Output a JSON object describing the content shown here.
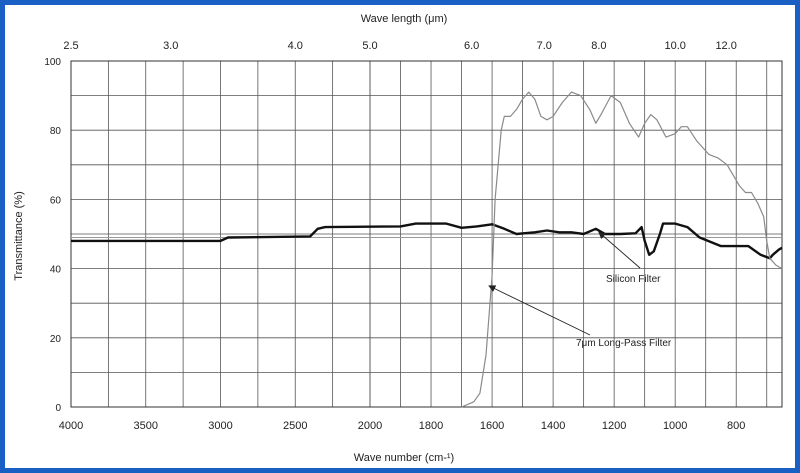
{
  "chart_data": {
    "type": "line",
    "title": "",
    "top_axis": {
      "label": "Wave length (μm)",
      "ticks": [
        {
          "label": "2.5",
          "wavenumber": 4000
        },
        {
          "label": "3.0",
          "wavenumber": 3333
        },
        {
          "label": "4.0",
          "wavenumber": 2500
        },
        {
          "label": "5.0",
          "wavenumber": 2000
        },
        {
          "label": "6.0",
          "wavenumber": 1667
        },
        {
          "label": "7.0",
          "wavenumber": 1429
        },
        {
          "label": "8.0",
          "wavenumber": 1250
        },
        {
          "label": "10.0",
          "wavenumber": 1000
        },
        {
          "label": "12.0",
          "wavenumber": 833
        }
      ]
    },
    "xlabel": "Wave number (cm-¹)",
    "ylabel": "Transmittance (%)",
    "x_break_at": 2000,
    "x_segments": [
      {
        "from": 4000,
        "to": 2000,
        "step": 500
      },
      {
        "from": 2000,
        "to": 650,
        "step": 200
      }
    ],
    "x_ticks": [
      4000,
      3500,
      3000,
      2500,
      2000,
      1800,
      1600,
      1400,
      1200,
      1000,
      800
    ],
    "xlim": [
      4000,
      650
    ],
    "ylim": [
      0,
      100
    ],
    "y_ticks": [
      0,
      20,
      40,
      60,
      80,
      100
    ],
    "grid": true,
    "reference_line_y": 49,
    "series": [
      {
        "name": "Silicon Filter",
        "color": "#111111",
        "line_weight": "bold",
        "points": [
          [
            4000,
            48
          ],
          [
            3000,
            48
          ],
          [
            2950,
            49
          ],
          [
            2400,
            49.3
          ],
          [
            2350,
            51.5
          ],
          [
            2300,
            52
          ],
          [
            1900,
            52.2
          ],
          [
            1850,
            53
          ],
          [
            1750,
            53
          ],
          [
            1700,
            51.8
          ],
          [
            1650,
            52.2
          ],
          [
            1600,
            52.8
          ],
          [
            1560,
            51.5
          ],
          [
            1520,
            50
          ],
          [
            1460,
            50.5
          ],
          [
            1420,
            51
          ],
          [
            1380,
            50.5
          ],
          [
            1340,
            50.5
          ],
          [
            1300,
            50
          ],
          [
            1260,
            51.5
          ],
          [
            1230,
            50
          ],
          [
            1180,
            50
          ],
          [
            1130,
            50.2
          ],
          [
            1110,
            52
          ],
          [
            1100,
            48
          ],
          [
            1085,
            44
          ],
          [
            1070,
            45
          ],
          [
            1050,
            50
          ],
          [
            1040,
            53
          ],
          [
            1000,
            53
          ],
          [
            960,
            52
          ],
          [
            920,
            49
          ],
          [
            850,
            46.5
          ],
          [
            760,
            46.5
          ],
          [
            720,
            44
          ],
          [
            690,
            43
          ],
          [
            680,
            44
          ],
          [
            660,
            45.5
          ],
          [
            650,
            46
          ]
        ]
      },
      {
        "name": "7μm Long-Pass Filter",
        "color": "#8a8a8a",
        "line_weight": "thin",
        "points": [
          [
            1700,
            0
          ],
          [
            1660,
            1.5
          ],
          [
            1640,
            4
          ],
          [
            1620,
            15
          ],
          [
            1600,
            38
          ],
          [
            1590,
            60
          ],
          [
            1570,
            80
          ],
          [
            1560,
            84
          ],
          [
            1540,
            84
          ],
          [
            1520,
            86
          ],
          [
            1500,
            89
          ],
          [
            1480,
            91
          ],
          [
            1460,
            89
          ],
          [
            1440,
            84
          ],
          [
            1420,
            83
          ],
          [
            1400,
            84
          ],
          [
            1370,
            88
          ],
          [
            1340,
            91
          ],
          [
            1310,
            90
          ],
          [
            1280,
            86
          ],
          [
            1260,
            82
          ],
          [
            1240,
            85
          ],
          [
            1210,
            90
          ],
          [
            1180,
            88
          ],
          [
            1150,
            82
          ],
          [
            1120,
            78
          ],
          [
            1100,
            82
          ],
          [
            1080,
            84.5
          ],
          [
            1060,
            83
          ],
          [
            1030,
            78
          ],
          [
            1000,
            79
          ],
          [
            980,
            81
          ],
          [
            960,
            81
          ],
          [
            930,
            77
          ],
          [
            890,
            73
          ],
          [
            860,
            72
          ],
          [
            830,
            70
          ],
          [
            810,
            67
          ],
          [
            790,
            64
          ],
          [
            770,
            62
          ],
          [
            750,
            62
          ],
          [
            730,
            59
          ],
          [
            710,
            55
          ],
          [
            700,
            48
          ],
          [
            690,
            43
          ],
          [
            670,
            41
          ],
          [
            650,
            40
          ]
        ]
      }
    ],
    "annotations": [
      {
        "text": "Silicon Filter",
        "points_to": [
          1250,
          50.5
        ]
      },
      {
        "text": "7μm Long-Pass Filter",
        "points_to": [
          1610,
          35
        ]
      }
    ]
  }
}
